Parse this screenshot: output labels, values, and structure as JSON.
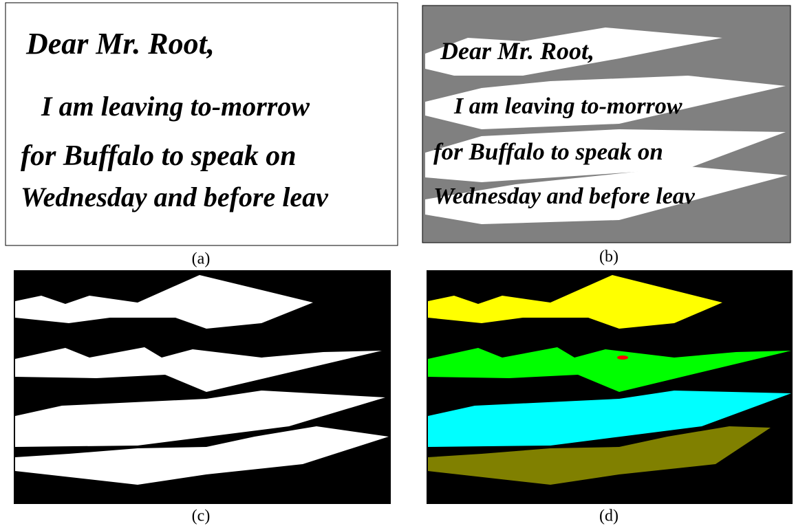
{
  "letter": {
    "lines": [
      "Dear Mr. Root,",
      "I am leaving to-morrow",
      "for Buffalo to speak on",
      "Wednesday and before leav"
    ]
  },
  "panels": [
    {
      "caption": "(a)"
    },
    {
      "caption": "(b)"
    },
    {
      "caption": "(c)"
    },
    {
      "caption": "(d)"
    }
  ]
}
